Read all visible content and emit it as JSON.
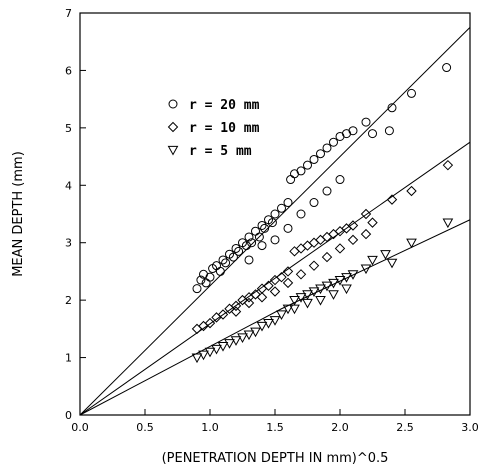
{
  "chart_data": {
    "type": "scatter",
    "title": "",
    "xlabel": "(PENETRATION DEPTH IN mm)^0.5",
    "ylabel": "MEAN DEPTH (mm)",
    "xlim": [
      0,
      3.0
    ],
    "ylim": [
      0,
      7
    ],
    "x_ticks": [
      0.0,
      0.5,
      1.0,
      1.5,
      2.0,
      2.5,
      3.0
    ],
    "x_tick_labels": [
      "0.0",
      "0.5",
      "1.0",
      "1.5",
      "2.0",
      "2.5",
      "3.0"
    ],
    "y_ticks": [
      0,
      1,
      2,
      3,
      4,
      5,
      6,
      7
    ],
    "y_tick_labels": [
      "0",
      "1",
      "2",
      "3",
      "4",
      "5",
      "6",
      "7"
    ],
    "grid": false,
    "legend_position": "upper-left",
    "series": [
      {
        "name": "r = 20 mm",
        "marker": "circle",
        "fit_line": [
          [
            0,
            0
          ],
          [
            3.0,
            6.75
          ]
        ],
        "points": [
          [
            0.9,
            2.2
          ],
          [
            0.93,
            2.35
          ],
          [
            0.95,
            2.45
          ],
          [
            0.97,
            2.3
          ],
          [
            1.0,
            2.4
          ],
          [
            1.02,
            2.55
          ],
          [
            1.05,
            2.6
          ],
          [
            1.08,
            2.5
          ],
          [
            1.1,
            2.7
          ],
          [
            1.12,
            2.65
          ],
          [
            1.15,
            2.8
          ],
          [
            1.18,
            2.75
          ],
          [
            1.2,
            2.9
          ],
          [
            1.22,
            2.85
          ],
          [
            1.25,
            3.0
          ],
          [
            1.28,
            2.95
          ],
          [
            1.3,
            3.1
          ],
          [
            1.32,
            3.0
          ],
          [
            1.35,
            3.2
          ],
          [
            1.38,
            3.1
          ],
          [
            1.4,
            3.3
          ],
          [
            1.42,
            3.25
          ],
          [
            1.45,
            3.4
          ],
          [
            1.48,
            3.35
          ],
          [
            1.5,
            3.5
          ],
          [
            1.55,
            3.6
          ],
          [
            1.6,
            3.7
          ],
          [
            1.62,
            4.1
          ],
          [
            1.65,
            4.2
          ],
          [
            1.7,
            4.25
          ],
          [
            1.75,
            4.35
          ],
          [
            1.8,
            4.45
          ],
          [
            1.85,
            4.55
          ],
          [
            1.9,
            4.65
          ],
          [
            1.95,
            4.75
          ],
          [
            2.0,
            4.85
          ],
          [
            2.05,
            4.9
          ],
          [
            2.1,
            4.95
          ],
          [
            2.2,
            5.1
          ],
          [
            2.25,
            4.9
          ],
          [
            2.4,
            5.35
          ],
          [
            2.38,
            4.95
          ],
          [
            2.55,
            5.6
          ],
          [
            2.82,
            6.05
          ],
          [
            1.3,
            2.7
          ],
          [
            1.4,
            2.95
          ],
          [
            1.5,
            3.05
          ],
          [
            1.6,
            3.25
          ],
          [
            1.7,
            3.5
          ],
          [
            1.8,
            3.7
          ],
          [
            1.9,
            3.9
          ],
          [
            2.0,
            4.1
          ]
        ]
      },
      {
        "name": "r = 10 mm",
        "marker": "diamond",
        "fit_line": [
          [
            0,
            0
          ],
          [
            1.65,
            2.62
          ],
          [
            3.0,
            4.75
          ]
        ],
        "points": [
          [
            0.9,
            1.5
          ],
          [
            0.95,
            1.55
          ],
          [
            1.0,
            1.6
          ],
          [
            1.05,
            1.7
          ],
          [
            1.1,
            1.75
          ],
          [
            1.15,
            1.85
          ],
          [
            1.2,
            1.9
          ],
          [
            1.25,
            2.0
          ],
          [
            1.3,
            2.05
          ],
          [
            1.35,
            2.1
          ],
          [
            1.4,
            2.2
          ],
          [
            1.45,
            2.25
          ],
          [
            1.5,
            2.35
          ],
          [
            1.55,
            2.4
          ],
          [
            1.6,
            2.5
          ],
          [
            1.65,
            2.85
          ],
          [
            1.7,
            2.9
          ],
          [
            1.75,
            2.95
          ],
          [
            1.8,
            3.0
          ],
          [
            1.85,
            3.05
          ],
          [
            1.9,
            3.1
          ],
          [
            1.95,
            3.15
          ],
          [
            2.0,
            3.2
          ],
          [
            2.05,
            3.25
          ],
          [
            2.1,
            3.3
          ],
          [
            2.2,
            3.5
          ],
          [
            2.25,
            3.35
          ],
          [
            2.4,
            3.75
          ],
          [
            2.55,
            3.9
          ],
          [
            2.83,
            4.35
          ],
          [
            1.2,
            1.8
          ],
          [
            1.3,
            1.95
          ],
          [
            1.4,
            2.05
          ],
          [
            1.5,
            2.15
          ],
          [
            1.6,
            2.3
          ],
          [
            1.7,
            2.45
          ],
          [
            1.8,
            2.6
          ],
          [
            1.9,
            2.75
          ],
          [
            2.0,
            2.9
          ],
          [
            2.1,
            3.05
          ],
          [
            2.2,
            3.15
          ]
        ]
      },
      {
        "name": "r = 5 mm",
        "marker": "triangle-down",
        "fit_line": [
          [
            0,
            0
          ],
          [
            1.55,
            1.85
          ],
          [
            3.0,
            3.4
          ]
        ],
        "points": [
          [
            0.9,
            1.0
          ],
          [
            0.95,
            1.05
          ],
          [
            1.0,
            1.1
          ],
          [
            1.05,
            1.15
          ],
          [
            1.1,
            1.2
          ],
          [
            1.15,
            1.25
          ],
          [
            1.2,
            1.3
          ],
          [
            1.25,
            1.35
          ],
          [
            1.3,
            1.4
          ],
          [
            1.35,
            1.45
          ],
          [
            1.4,
            1.55
          ],
          [
            1.45,
            1.6
          ],
          [
            1.5,
            1.65
          ],
          [
            1.55,
            1.75
          ],
          [
            1.6,
            1.85
          ],
          [
            1.65,
            2.0
          ],
          [
            1.7,
            2.05
          ],
          [
            1.75,
            2.1
          ],
          [
            1.8,
            2.15
          ],
          [
            1.85,
            2.2
          ],
          [
            1.9,
            2.25
          ],
          [
            1.95,
            2.3
          ],
          [
            2.0,
            2.35
          ],
          [
            2.05,
            2.4
          ],
          [
            2.1,
            2.45
          ],
          [
            2.2,
            2.55
          ],
          [
            2.25,
            2.7
          ],
          [
            2.35,
            2.8
          ],
          [
            2.4,
            2.65
          ],
          [
            2.55,
            3.0
          ],
          [
            2.83,
            3.35
          ],
          [
            1.65,
            1.85
          ],
          [
            1.75,
            1.95
          ],
          [
            1.85,
            2.0
          ],
          [
            1.95,
            2.1
          ],
          [
            2.05,
            2.2
          ]
        ]
      }
    ]
  }
}
